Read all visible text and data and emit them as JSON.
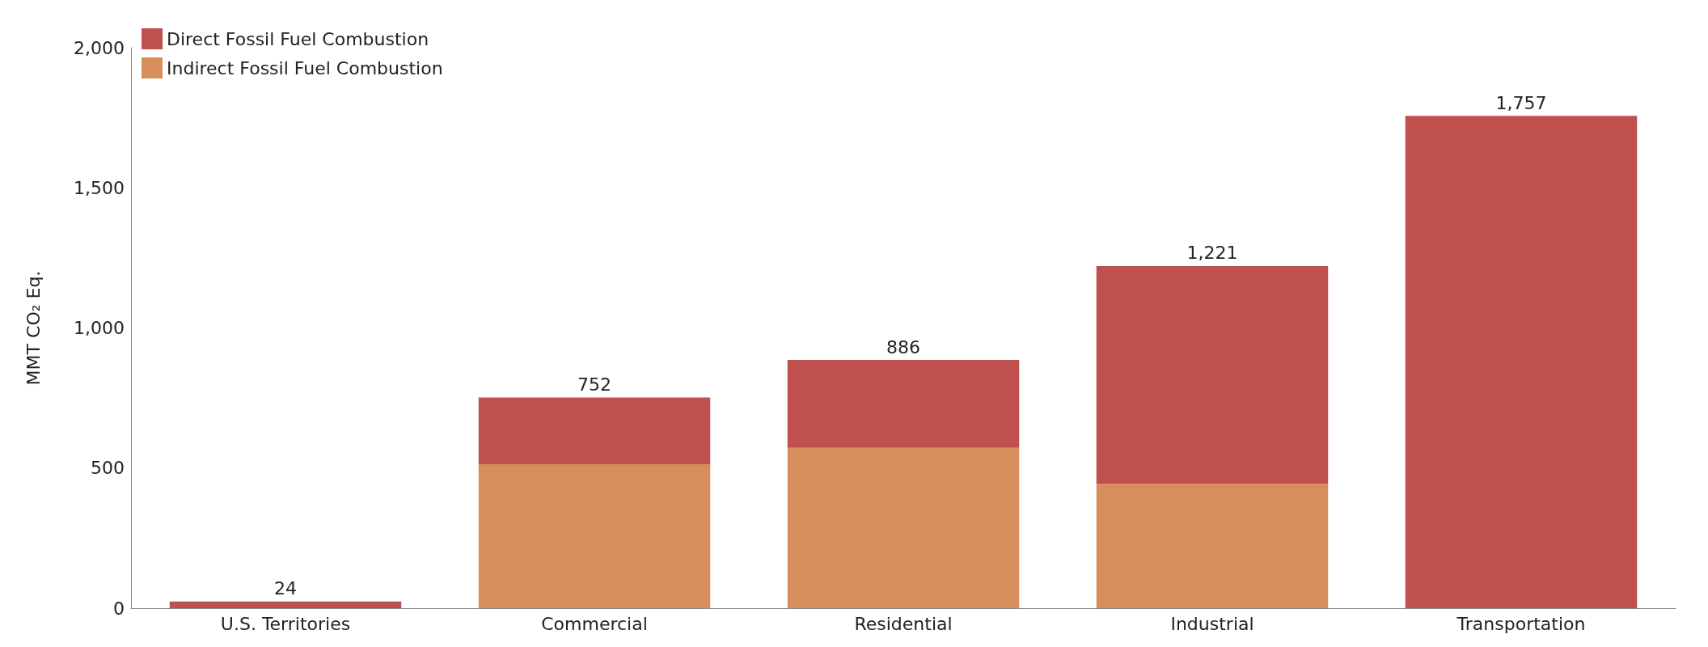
{
  "chart_data": {
    "type": "bar",
    "stacked": true,
    "ylabel": "MMT CO₂ Eq.",
    "categories": [
      "U.S. Territories",
      "Commercial",
      "Residential",
      "Industrial",
      "Transportation"
    ],
    "series": [
      {
        "name": "Indirect Fossil Fuel Combustion",
        "color": "#d68f5a",
        "values": [
          0,
          514,
          572,
          444,
          0
        ]
      },
      {
        "name": "Direct Fossil Fuel Combustion",
        "color": "#c0504d",
        "values": [
          24,
          238,
          314,
          777,
          1757
        ]
      }
    ],
    "totals": [
      "24",
      "752",
      "886",
      "1,221",
      "1,757"
    ],
    "ylim": [
      0,
      2000
    ],
    "yticks": [
      0,
      500,
      {
        "value": 1000,
        "label": "1,000"
      },
      {
        "value": 1500,
        "label": "1,500"
      },
      {
        "value": 2000,
        "label": "2,000"
      }
    ],
    "grid": false,
    "legend": "top left"
  }
}
